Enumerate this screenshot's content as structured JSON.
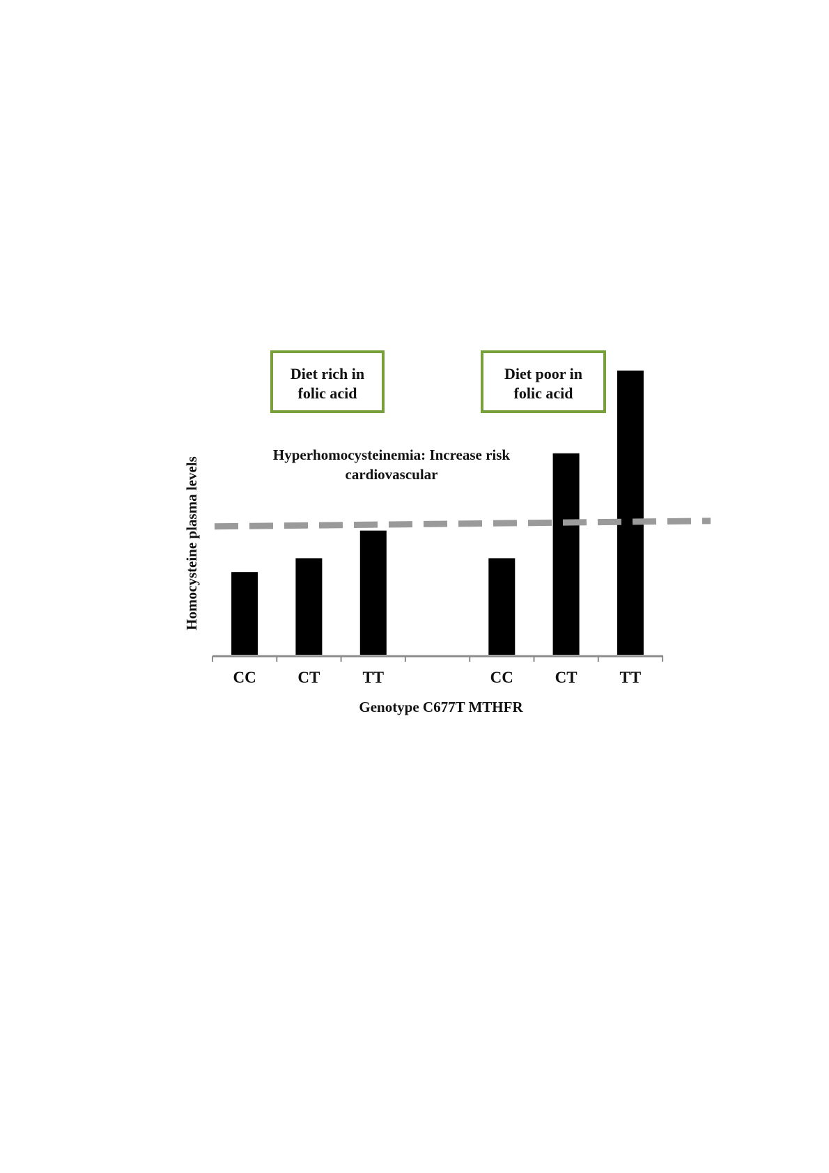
{
  "chart_data": {
    "type": "bar",
    "categories": [
      "CC",
      "CT",
      "TT",
      "",
      "CC",
      "CT",
      "TT"
    ],
    "values": [
      3.0,
      3.5,
      4.5,
      null,
      3.5,
      7.3,
      10.3
    ],
    "ylim": [
      0,
      10.3
    ],
    "xlabel": "Genotype C677T MTHFR",
    "ylabel": "Homocysteine plasma levels",
    "threshold": 4.75,
    "threshold_label_lines": [
      "Hyperhomocysteinemia: Increase risk",
      "cardiovascular"
    ],
    "groups": [
      {
        "label_lines": [
          "Diet rich in",
          "folic acid"
        ],
        "categories": [
          "CC",
          "CT",
          "TT"
        ]
      },
      {
        "label_lines": [
          "Diet poor in",
          "folic acid"
        ],
        "categories": [
          "CC",
          "CT",
          "TT"
        ]
      }
    ],
    "grid": false,
    "legend": "none",
    "colors": {
      "bars": "#000000",
      "threshold_line": "#9a9a9a",
      "group_box_border": "#77a03a",
      "axis": "#8c8c8c"
    }
  }
}
